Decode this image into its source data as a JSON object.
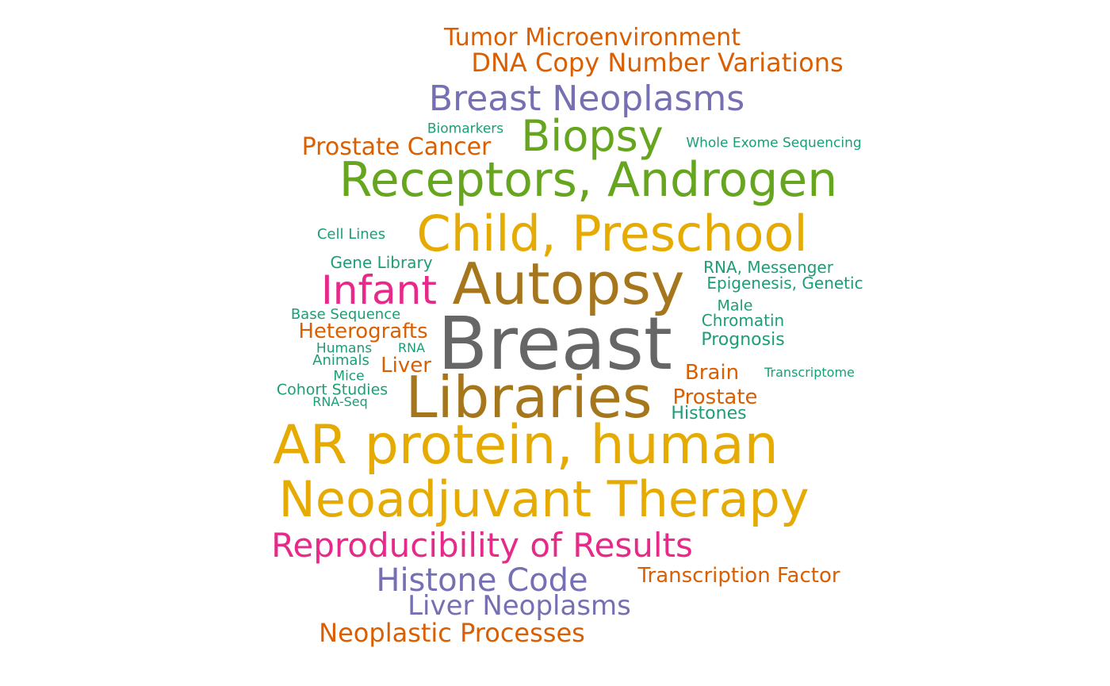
{
  "colors": {
    "gray": "#666666",
    "brown": "#A6761D",
    "gold": "#E6AB02",
    "magenta": "#E7298A",
    "green": "#66A61E",
    "purple": "#7570B3",
    "orange": "#D95F02",
    "teal": "#1B9E77"
  },
  "words": [
    {
      "text": "Breast",
      "color": "gray"
    },
    {
      "text": "Autopsy",
      "color": "brown"
    },
    {
      "text": "Libraries",
      "color": "brown"
    },
    {
      "text": "AR protein, human",
      "color": "gold"
    },
    {
      "text": "Child, Preschool",
      "color": "gold"
    },
    {
      "text": "Neoadjuvant Therapy",
      "color": "gold"
    },
    {
      "text": "Receptors, Androgen",
      "color": "green"
    },
    {
      "text": "Biopsy",
      "color": "green"
    },
    {
      "text": "Infant",
      "color": "magenta"
    },
    {
      "text": "Reproducibility of Results",
      "color": "magenta"
    },
    {
      "text": "Breast Neoplasms",
      "color": "purple"
    },
    {
      "text": "Histone Code",
      "color": "purple"
    },
    {
      "text": "Liver Neoplasms",
      "color": "purple"
    },
    {
      "text": "Tumor Microenvironment",
      "color": "orange"
    },
    {
      "text": "DNA Copy Number Variations",
      "color": "orange"
    },
    {
      "text": "Prostate Cancer",
      "color": "orange"
    },
    {
      "text": "Neoplastic Processes",
      "color": "orange"
    },
    {
      "text": "Transcription Factor",
      "color": "orange"
    },
    {
      "text": "Heterografts",
      "color": "orange"
    },
    {
      "text": "Liver",
      "color": "orange"
    },
    {
      "text": "Brain",
      "color": "orange"
    },
    {
      "text": "Prostate",
      "color": "orange"
    },
    {
      "text": "Biomarkers",
      "color": "teal"
    },
    {
      "text": "Whole Exome Sequencing",
      "color": "teal"
    },
    {
      "text": "Cell Lines",
      "color": "teal"
    },
    {
      "text": "Gene Library",
      "color": "teal"
    },
    {
      "text": "RNA, Messenger",
      "color": "teal"
    },
    {
      "text": "Epigenesis, Genetic",
      "color": "teal"
    },
    {
      "text": "Male",
      "color": "teal"
    },
    {
      "text": "Chromatin",
      "color": "teal"
    },
    {
      "text": "Prognosis",
      "color": "teal"
    },
    {
      "text": "Base Sequence",
      "color": "teal"
    },
    {
      "text": "Humans",
      "color": "teal"
    },
    {
      "text": "RNA",
      "color": "teal"
    },
    {
      "text": "Animals",
      "color": "teal"
    },
    {
      "text": "Mice",
      "color": "teal"
    },
    {
      "text": "Cohort Studies",
      "color": "teal"
    },
    {
      "text": "RNA-Seq",
      "color": "teal"
    },
    {
      "text": "Transcriptome",
      "color": "teal"
    },
    {
      "text": "Histones",
      "color": "teal"
    }
  ]
}
